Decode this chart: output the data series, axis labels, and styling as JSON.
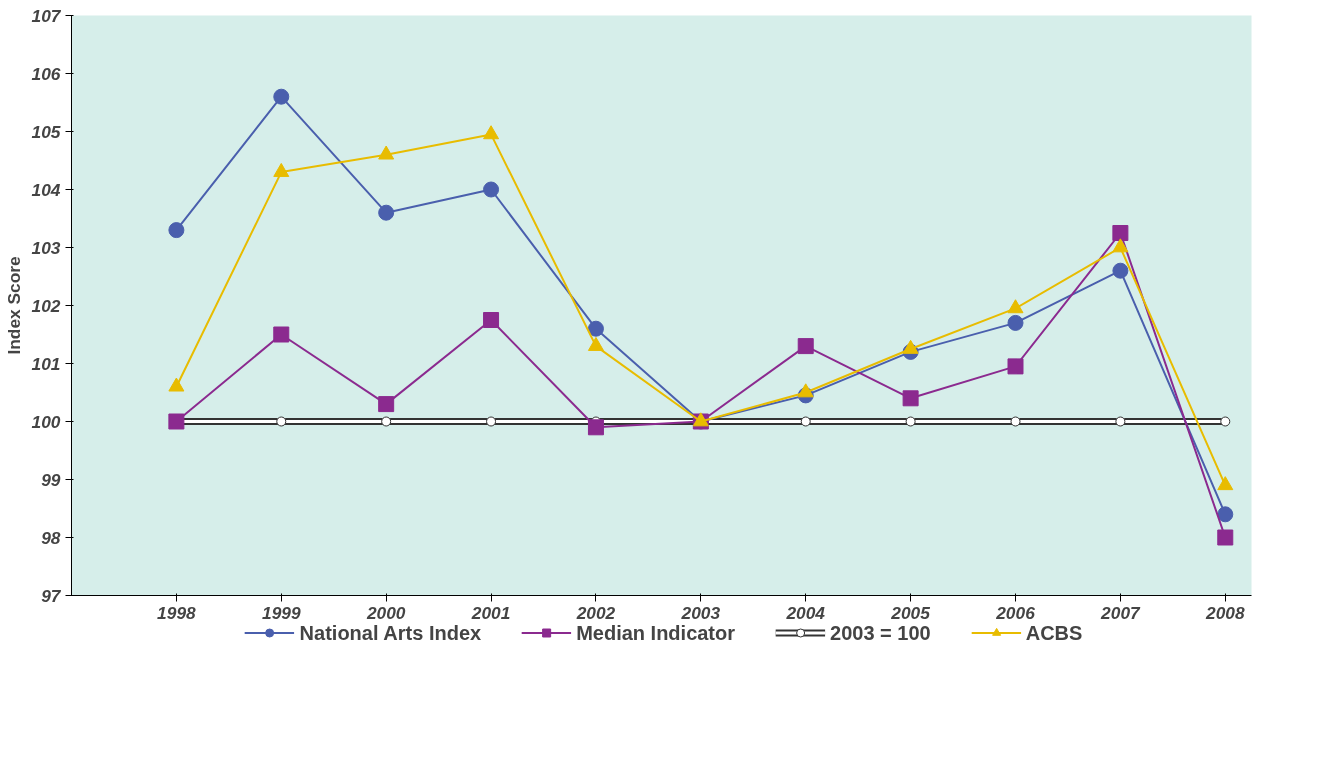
{
  "chart_data": {
    "type": "line",
    "ylabel": "Index Score",
    "categories": [
      "1998",
      "1999",
      "2000",
      "2001",
      "2002",
      "2003",
      "2004",
      "2005",
      "2006",
      "2007",
      "2008"
    ],
    "ylim": [
      97,
      107
    ],
    "yticks": [
      97,
      98,
      99,
      100,
      101,
      102,
      103,
      104,
      105,
      106,
      107
    ],
    "grid": false,
    "legend": "bottom",
    "line_style": "solid",
    "series": [
      {
        "name": "National Arts Index",
        "color": "#4a5fad",
        "marker": "circle",
        "values": [
          103.3,
          105.6,
          103.6,
          104.0,
          101.6,
          100.0,
          100.45,
          101.2,
          101.7,
          102.6,
          98.4
        ]
      },
      {
        "name": "Median Indicator",
        "color": "#8b2a8f",
        "marker": "square",
        "values": [
          100.0,
          101.5,
          100.3,
          101.75,
          99.9,
          100.0,
          101.3,
          100.4,
          100.95,
          103.25,
          98.0
        ]
      },
      {
        "name": "2003 = 100",
        "color": "#ffffff",
        "marker": "circle",
        "values": [
          100,
          100,
          100,
          100,
          100,
          100,
          100,
          100,
          100,
          100,
          100
        ]
      },
      {
        "name": "ACBS",
        "color": "#e8bc00",
        "marker": "triangle",
        "values": [
          100.6,
          104.3,
          104.6,
          104.95,
          101.3,
          100.0,
          100.5,
          101.25,
          101.95,
          103.0,
          98.9
        ]
      }
    ]
  }
}
